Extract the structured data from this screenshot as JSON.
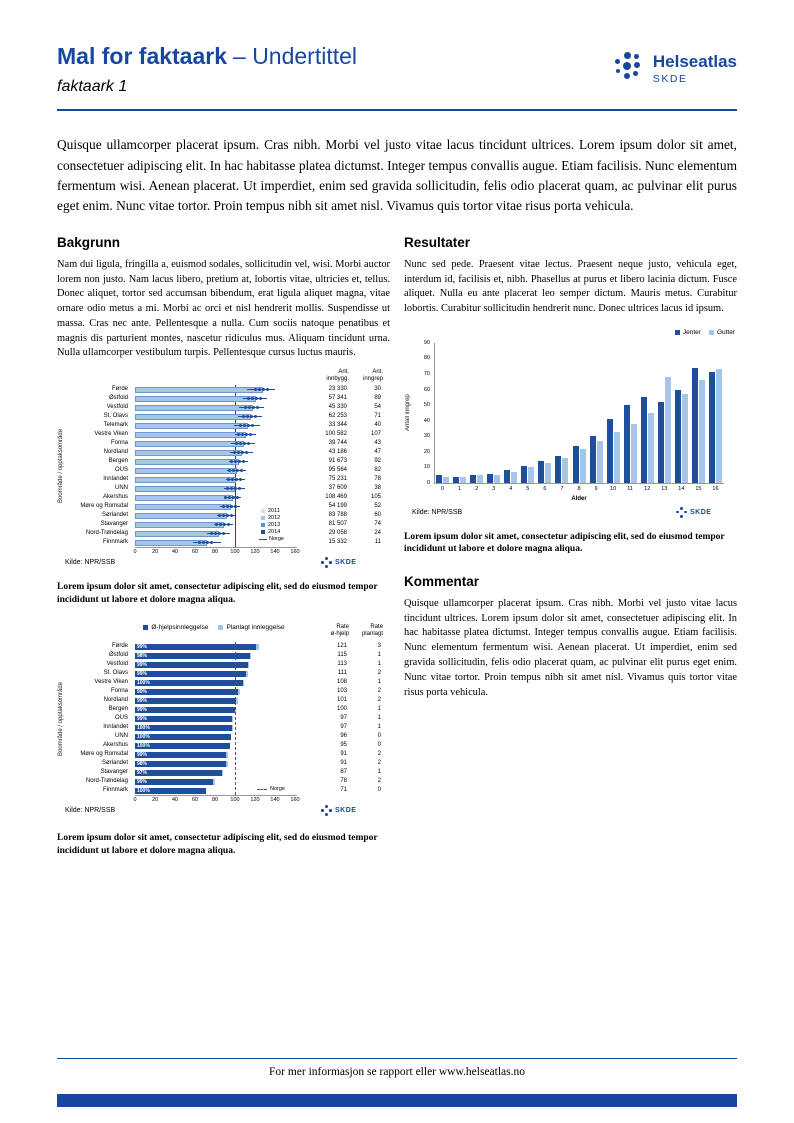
{
  "header": {
    "title": "Mal for faktaark",
    "subtitle": "– Undertittel",
    "doc_label": "faktaark 1",
    "logo": {
      "name": "Helseatlas",
      "sub": "SKDE"
    }
  },
  "logos": {
    "skde": "SKDE"
  },
  "intro": "Quisque ullamcorper placerat ipsum. Cras nibh. Morbi vel justo vitae lacus tincidunt ultrices. Lorem ipsum dolor sit amet, consectetuer adipiscing elit. In hac habitasse platea dictumst. Integer tempus convallis augue. Etiam facilisis. Nunc elementum fermentum wisi. Aenean placerat. Ut imperdiet, enim sed gravida sollicitudin, felis odio placerat quam, ac pulvinar elit purus eget enim. Nunc vitae tortor. Proin tempus nibh sit amet nisl. Vivamus quis tortor vitae risus porta vehicula.",
  "sections": {
    "bakgrunn": {
      "heading": "Bakgrunn",
      "body": "Nam dui ligula, fringilla a, euismod sodales, sollicitudin vel, wisi. Morbi auctor lorem non justo. Nam lacus libero, pretium at, lobortis vitae, ultricies et, tellus. Donec aliquet, tortor sed accumsan bibendum, erat ligula aliquet magna, vitae ornare odio metus a mi. Morbi ac orci et nisl hendrerit mollis. Suspendisse ut massa. Cras nec ante. Pellentesque a nulla. Cum sociis natoque penatibus et magnis dis parturient montes, nascetur ridiculus mus. Aliquam tincidunt urna. Nulla ullamcorper vestibulum turpis. Pellentesque cursus luctus mauris."
    },
    "resultater": {
      "heading": "Resultater",
      "body": "Nunc sed pede. Praesent vitae lectus. Praesent neque justo, vehicula eget, interdum id, facilisis et, nibh. Phasellus at purus et libero lacinia dictum. Fusce aliquet. Nulla eu ante placerat leo semper dictum. Mauris metus. Curabitur lobortis. Curabitur sollicitudin hendrerit nunc. Donec ultrices lacus id ipsum."
    },
    "kommentar": {
      "heading": "Kommentar",
      "body": "Quisque ullamcorper placerat ipsum. Cras nibh. Morbi vel justo vitae lacus tincidunt ultrices. Lorem ipsum dolor sit amet, consectetuer adipiscing elit. In hac habitasse platea dictumst. Integer tempus convallis augue. Etiam facilisis. Nunc elementum fermentum wisi. Aenean placerat. Ut imperdiet, enim sed gravida sollicitudin, felis odio placerat quam, ac pulvinar elit purus eget enim. Nunc vitae tortor. Proin tempus nibh sit amet nisl. Vivamus quis tortor vitae risus porta vehicula."
    }
  },
  "captions": {
    "chart1": "Lorem ipsum dolor sit amet, consectetur adipiscing elit, sed do eiusmod tempor incididunt ut labore et dolore magna aliqua.",
    "chart2": "Lorem ipsum dolor sit amet, consectetur adipiscing elit, sed do eiusmod tempor incididunt ut labore et dolore magna aliqua.",
    "chart3": "Lorem ipsum dolor sit amet, consectetur adipiscing elit, sed do eiusmod tempor incididunt ut labore et dolore magna aliqua."
  },
  "footer": {
    "text": "For mer informasjon se rapport eller www.helseatlas.no"
  },
  "colors": {
    "brand_blue": "#17479E",
    "dark_bar": "#1F4E9C",
    "mid_bar": "#5B8FC9",
    "light_bar": "#A5C6E9",
    "pale_bar": "#CFDFF1",
    "bar_border": "#6E96C8"
  },
  "chart_data": [
    {
      "id": "rates-by-area",
      "type": "bar",
      "orientation": "horizontal",
      "ylabel": "Boområde / opptaksområde",
      "xlim": [
        0,
        160
      ],
      "x_ticks": [
        0,
        20,
        40,
        60,
        80,
        100,
        120,
        140,
        160
      ],
      "norge_ref": 100,
      "col_headers": [
        "Ant.\ninnbygg.",
        "Ant.\ninngrep"
      ],
      "legend_years": [
        "2011",
        "2012",
        "2013",
        "2014"
      ],
      "legend_line_label": "Norge",
      "source": "Kilde: NPR/SSB",
      "rows": [
        {
          "label": "Førde",
          "rate": 128,
          "ci_low": 112,
          "ci_high": 140,
          "innbygg": "23 330",
          "inngrep": "30"
        },
        {
          "label": "Østfold",
          "rate": 121,
          "ci_low": 108,
          "ci_high": 132,
          "innbygg": "57 341",
          "inngrep": "89"
        },
        {
          "label": "Vestfold",
          "rate": 118,
          "ci_low": 104,
          "ci_high": 129,
          "innbygg": "45 330",
          "inngrep": "54"
        },
        {
          "label": "St. Olavs",
          "rate": 116,
          "ci_low": 103,
          "ci_high": 127,
          "innbygg": "62 253",
          "inngrep": "71"
        },
        {
          "label": "Telemark",
          "rate": 113,
          "ci_low": 99,
          "ci_high": 125,
          "innbygg": "33 344",
          "inngrep": "40"
        },
        {
          "label": "Vestre Viken",
          "rate": 111,
          "ci_low": 100,
          "ci_high": 121,
          "innbygg": "100 582",
          "inngrep": "107"
        },
        {
          "label": "Fonna",
          "rate": 109,
          "ci_low": 96,
          "ci_high": 120,
          "innbygg": "39 744",
          "inngrep": "43"
        },
        {
          "label": "Nordland",
          "rate": 107,
          "ci_low": 95,
          "ci_high": 118,
          "innbygg": "43 186",
          "inngrep": "47"
        },
        {
          "label": "Bergen",
          "rate": 104,
          "ci_low": 94,
          "ci_high": 113,
          "innbygg": "91 673",
          "inngrep": "92"
        },
        {
          "label": "OUS",
          "rate": 102,
          "ci_low": 92,
          "ci_high": 111,
          "innbygg": "95 564",
          "inngrep": "82"
        },
        {
          "label": "Innlandet",
          "rate": 101,
          "ci_low": 91,
          "ci_high": 110,
          "innbygg": "75 231",
          "inngrep": "78"
        },
        {
          "label": "UNN",
          "rate": 100,
          "ci_low": 89,
          "ci_high": 110,
          "innbygg": "37 609",
          "inngrep": "38"
        },
        {
          "label": "Akershus",
          "rate": 98,
          "ci_low": 89,
          "ci_high": 106,
          "innbygg": "108 469",
          "inngrep": "105"
        },
        {
          "label": "Møre og Romsdal",
          "rate": 96,
          "ci_low": 85,
          "ci_high": 105,
          "innbygg": "54 199",
          "inngrep": "52"
        },
        {
          "label": "Sørlandet",
          "rate": 92,
          "ci_low": 82,
          "ci_high": 101,
          "innbygg": "83 788",
          "inngrep": "60"
        },
        {
          "label": "Stavanger",
          "rate": 89,
          "ci_low": 79,
          "ci_high": 98,
          "innbygg": "81 507",
          "inngrep": "74"
        },
        {
          "label": "Nord-Trøndelag",
          "rate": 84,
          "ci_low": 72,
          "ci_high": 95,
          "innbygg": "29 058",
          "inngrep": "24"
        },
        {
          "label": "Finnmark",
          "rate": 72,
          "ci_low": 58,
          "ci_high": 86,
          "innbygg": "15 332",
          "inngrep": "11"
        }
      ]
    },
    {
      "id": "admission-type-by-area",
      "type": "bar",
      "orientation": "horizontal",
      "ylabel": "Boområde / opptaksområde",
      "xlim": [
        0,
        160
      ],
      "x_ticks": [
        0,
        20,
        40,
        60,
        80,
        100,
        120,
        140,
        160
      ],
      "norge_ref": 100,
      "norge_label": "Norge",
      "legend": [
        "Ø-hjelpsinnleggelse",
        "Planlagt innleggelse"
      ],
      "col_headers": [
        "Rate\nø-hjelp",
        "Rate\nplanlagt"
      ],
      "source": "Kilde: NPR/SSB",
      "rows": [
        {
          "label": "Førde",
          "pct": "99%",
          "rate_ohjelp": 121,
          "rate_planlagt": 3
        },
        {
          "label": "Østfold",
          "pct": "98%",
          "rate_ohjelp": 115,
          "rate_planlagt": 1
        },
        {
          "label": "Vestfold",
          "pct": "99%",
          "rate_ohjelp": 113,
          "rate_planlagt": 1
        },
        {
          "label": "St. Olavs",
          "pct": "99%",
          "rate_ohjelp": 111,
          "rate_planlagt": 2
        },
        {
          "label": "Vestre Viken",
          "pct": "100%",
          "rate_ohjelp": 108,
          "rate_planlagt": 1
        },
        {
          "label": "Fonna",
          "pct": "99%",
          "rate_ohjelp": 103,
          "rate_planlagt": 2
        },
        {
          "label": "Nordland",
          "pct": "99%",
          "rate_ohjelp": 101,
          "rate_planlagt": 2
        },
        {
          "label": "Bergen",
          "pct": "99%",
          "rate_ohjelp": 100,
          "rate_planlagt": 1
        },
        {
          "label": "OUS",
          "pct": "99%",
          "rate_ohjelp": 97,
          "rate_planlagt": 1
        },
        {
          "label": "Innlandet",
          "pct": "100%",
          "rate_ohjelp": 97,
          "rate_planlagt": 1
        },
        {
          "label": "UNN",
          "pct": "100%",
          "rate_ohjelp": 96,
          "rate_planlagt": 0
        },
        {
          "label": "Akershus",
          "pct": "100%",
          "rate_ohjelp": 95,
          "rate_planlagt": 0
        },
        {
          "label": "Møre og Romsdal",
          "pct": "99%",
          "rate_ohjelp": 91,
          "rate_planlagt": 2
        },
        {
          "label": "Sørlandet",
          "pct": "98%",
          "rate_ohjelp": 91,
          "rate_planlagt": 2
        },
        {
          "label": "Stavanger",
          "pct": "97%",
          "rate_ohjelp": 87,
          "rate_planlagt": 1
        },
        {
          "label": "Nord-Trøndelag",
          "pct": "99%",
          "rate_ohjelp": 78,
          "rate_planlagt": 2
        },
        {
          "label": "Finnmark",
          "pct": "100%",
          "rate_ohjelp": 71,
          "rate_planlagt": 0
        }
      ]
    },
    {
      "id": "inngrep-by-age",
      "type": "bar",
      "orientation": "vertical",
      "xlabel": "Alder",
      "ylabel": "Antall inngrep",
      "ylim": [
        0,
        90
      ],
      "y_ticks": [
        0,
        10,
        20,
        30,
        40,
        50,
        60,
        70,
        80,
        90
      ],
      "categories": [
        0,
        1,
        2,
        3,
        4,
        5,
        6,
        7,
        8,
        9,
        10,
        11,
        12,
        13,
        14,
        15,
        16
      ],
      "series": [
        {
          "name": "Jenter",
          "values": [
            5,
            4,
            5,
            6,
            8,
            11,
            14,
            17,
            24,
            30,
            41,
            50,
            55,
            52,
            60,
            74,
            71
          ]
        },
        {
          "name": "Gutter",
          "values": [
            4,
            4,
            5,
            5,
            7,
            10,
            13,
            16,
            22,
            27,
            33,
            38,
            45,
            68,
            57,
            66,
            73
          ]
        }
      ],
      "source": "Kilde: NPR/SSB"
    }
  ]
}
